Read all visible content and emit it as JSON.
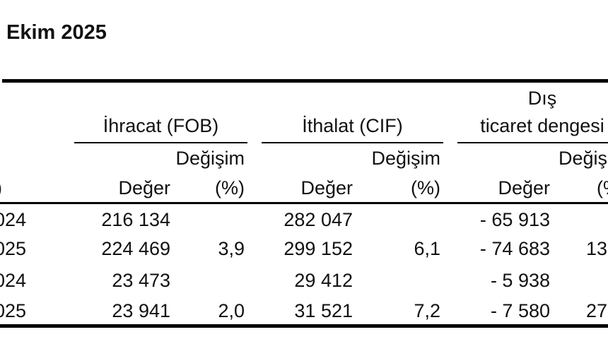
{
  "title": "Ekim 2025",
  "table": {
    "groups": [
      {
        "label": "İhracat (FOB)",
        "change_label": "Değişim",
        "value_label": "Değer",
        "pct_label": "(%)"
      },
      {
        "label": "İthalat (CIF)",
        "change_label": "Değişim",
        "value_label": "Değer",
        "pct_label": "(%)"
      },
      {
        "label_line1": "Dış",
        "label_line2": "ticaret dengesi",
        "change_label": "Değişim",
        "value_label": "Değer",
        "pct_label": "(%)"
      }
    ],
    "stub_fragment": ")",
    "rows": [
      {
        "label": "024",
        "export_value": "216 134",
        "export_pct": "",
        "import_value": "282 047",
        "import_pct": "",
        "balance_value": "- 65 913",
        "balance_pct": ""
      },
      {
        "label": "025",
        "export_value": "224 469",
        "export_pct": "3,9",
        "import_value": "299 152",
        "import_pct": "6,1",
        "balance_value": "- 74 683",
        "balance_pct": "13"
      },
      {
        "label": "024",
        "export_value": "23 473",
        "export_pct": "",
        "import_value": "29 412",
        "import_pct": "",
        "balance_value": "- 5 938",
        "balance_pct": ""
      },
      {
        "label": "025",
        "export_value": "23 941",
        "export_pct": "2,0",
        "import_value": "31 521",
        "import_pct": "7,2",
        "balance_value": "- 7 580",
        "balance_pct": "27"
      }
    ]
  },
  "colors": {
    "text": "#111111",
    "rule": "#000000",
    "background": "#ffffff"
  }
}
